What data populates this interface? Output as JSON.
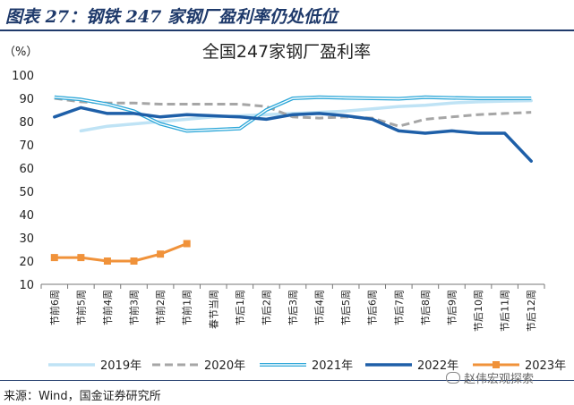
{
  "figure_heading": "图表 27：钢铁 247 家钢厂盈利率仍处低位",
  "source": "来源：Wind，国金证券研究所",
  "watermark": "赵伟宏观探索",
  "chart_data": {
    "type": "line",
    "title": "全国247家钢厂盈利率",
    "ylabel": "（%）",
    "ylim": [
      10,
      100
    ],
    "yticks": [
      10,
      20,
      30,
      40,
      50,
      60,
      70,
      80,
      90,
      100
    ],
    "categories": [
      "节前6周",
      "节前5周",
      "节前4周",
      "节前3周",
      "节前2周",
      "节前1周",
      "春节当周",
      "节后1周",
      "节后2周",
      "节后3周",
      "节后4周",
      "节后5周",
      "节后6周",
      "节后7周",
      "节后8周",
      "节后9周",
      "节后10周",
      "节后11周",
      "节后12周"
    ],
    "legend_position": "bottom",
    "grid": false,
    "series": [
      {
        "name": "2019年",
        "color": "#bfe3f5",
        "style": "solid",
        "width": 3.5,
        "values": [
          null,
          76,
          78,
          79,
          80,
          81,
          82,
          82.5,
          83,
          83.5,
          84,
          84.5,
          85.5,
          86.5,
          87,
          88,
          88.5,
          88.8,
          89
        ]
      },
      {
        "name": "2020年",
        "color": "#a6a6a6",
        "style": "dashed",
        "width": 3,
        "values": [
          90,
          88.5,
          88,
          88,
          87.5,
          87.5,
          87.5,
          87.5,
          86.5,
          82,
          81.5,
          82,
          81.5,
          78,
          81,
          82,
          83,
          83.5,
          84
        ]
      },
      {
        "name": "2021年",
        "color": "#2aa6d8",
        "style": "double",
        "width": 4,
        "values": [
          90.5,
          89.5,
          87.5,
          84.5,
          79,
          76,
          76.5,
          77,
          85,
          90,
          90.5,
          90.2,
          90,
          89.8,
          90.5,
          90.2,
          90,
          90,
          90
        ]
      },
      {
        "name": "2022年",
        "color": "#1e5fa8",
        "style": "solid",
        "width": 3.5,
        "values": [
          82,
          86,
          83.5,
          83.5,
          82,
          83,
          82.5,
          82,
          81,
          83,
          83.5,
          82.5,
          81,
          76,
          75,
          76,
          75,
          75,
          63
        ]
      },
      {
        "name": "2023年",
        "color": "#f0923a",
        "style": "marker",
        "width": 3,
        "values": [
          21.5,
          21.5,
          20,
          20,
          23,
          27.5,
          null,
          null,
          null,
          null,
          null,
          null,
          null,
          null,
          null,
          null,
          null,
          null,
          null
        ]
      }
    ]
  }
}
